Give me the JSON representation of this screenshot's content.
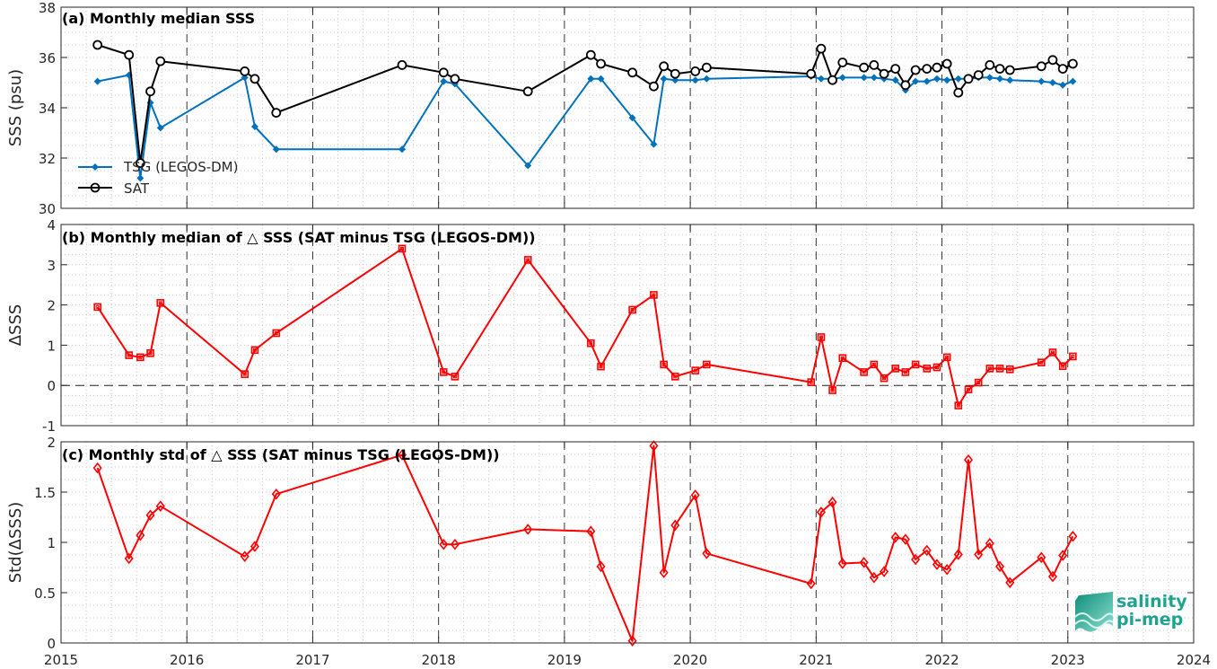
{
  "colors": {
    "tsg": "#0072BD",
    "sat": "#000000",
    "delta": "#FF0000",
    "grid_major": "#000000",
    "grid_minor": "#c8c8c8",
    "logo": "#1fa38f"
  },
  "logo": {
    "line1": "salinity",
    "line2": "pi-mep"
  },
  "chart_data": [
    {
      "type": "line",
      "title": "(a) Monthly median SSS",
      "ylabel": "SSS (psu)",
      "xlim": [
        2015,
        2024
      ],
      "ylim": [
        30,
        38
      ],
      "yticks": [
        30,
        32,
        34,
        36,
        38
      ],
      "xticks": [
        2015,
        2016,
        2017,
        2018,
        2019,
        2020,
        2021,
        2022,
        2023,
        2024
      ],
      "grid": true,
      "legend": "bottom-left",
      "series": [
        {
          "name": "TSG (LEGOS-DM)",
          "marker": "diamond-filled",
          "x": [
            2015.29,
            2015.54,
            2015.63,
            2015.71,
            2015.79,
            2016.46,
            2016.54,
            2016.71,
            2017.71,
            2018.04,
            2018.13,
            2018.71,
            2019.21,
            2019.29,
            2019.54,
            2019.71,
            2019.79,
            2019.88,
            2020.04,
            2020.13,
            2020.96,
            2021.04,
            2021.13,
            2021.21,
            2021.38,
            2021.46,
            2021.54,
            2021.63,
            2021.71,
            2021.79,
            2021.88,
            2021.96,
            2022.04,
            2022.13,
            2022.21,
            2022.29,
            2022.38,
            2022.46,
            2022.54,
            2022.79,
            2022.88,
            2022.96,
            2023.04
          ],
          "y": [
            35.05,
            35.3,
            31.2,
            34.2,
            33.2,
            35.2,
            33.25,
            32.35,
            32.35,
            35.05,
            34.95,
            31.7,
            35.15,
            35.15,
            33.6,
            32.55,
            35.15,
            35.1,
            35.1,
            35.15,
            35.25,
            35.15,
            35.15,
            35.2,
            35.2,
            35.2,
            35.15,
            35.1,
            34.7,
            35.05,
            35.05,
            35.15,
            35.1,
            35.15,
            35.15,
            35.2,
            35.2,
            35.15,
            35.1,
            35.05,
            35.0,
            34.9,
            35.05
          ]
        },
        {
          "name": "SAT",
          "marker": "circle-open",
          "x": [
            2015.29,
            2015.54,
            2015.63,
            2015.71,
            2015.79,
            2016.46,
            2016.54,
            2016.71,
            2017.71,
            2018.04,
            2018.13,
            2018.71,
            2019.21,
            2019.29,
            2019.54,
            2019.71,
            2019.79,
            2019.88,
            2020.04,
            2020.13,
            2020.96,
            2021.04,
            2021.13,
            2021.21,
            2021.38,
            2021.46,
            2021.54,
            2021.63,
            2021.71,
            2021.79,
            2021.88,
            2021.96,
            2022.04,
            2022.13,
            2022.21,
            2022.29,
            2022.38,
            2022.46,
            2022.54,
            2022.79,
            2022.88,
            2022.96,
            2023.04
          ],
          "y": [
            36.5,
            36.1,
            31.8,
            34.65,
            35.85,
            35.45,
            35.15,
            33.8,
            35.7,
            35.4,
            35.15,
            34.65,
            36.1,
            35.75,
            35.4,
            34.85,
            35.65,
            35.35,
            35.45,
            35.6,
            35.35,
            36.35,
            35.1,
            35.8,
            35.6,
            35.7,
            35.35,
            35.55,
            34.9,
            35.5,
            35.55,
            35.6,
            35.75,
            34.6,
            35.15,
            35.3,
            35.7,
            35.55,
            35.5,
            35.65,
            35.9,
            35.55,
            35.75
          ]
        }
      ]
    },
    {
      "type": "line",
      "title": "(b) Monthly median of △ SSS (SAT minus TSG (LEGOS-DM))",
      "ylabel": "ΔSSS",
      "xlim": [
        2015,
        2024
      ],
      "ylim": [
        -1,
        4
      ],
      "yticks": [
        -1,
        0,
        1,
        2,
        3,
        4
      ],
      "grid": true,
      "zero_line": true,
      "series": [
        {
          "marker": "square-open",
          "x": [
            2015.29,
            2015.54,
            2015.63,
            2015.71,
            2015.79,
            2016.46,
            2016.54,
            2016.71,
            2017.71,
            2018.04,
            2018.13,
            2018.71,
            2019.21,
            2019.29,
            2019.54,
            2019.71,
            2019.79,
            2019.88,
            2020.04,
            2020.13,
            2020.96,
            2021.04,
            2021.13,
            2021.21,
            2021.38,
            2021.46,
            2021.54,
            2021.63,
            2021.71,
            2021.79,
            2021.88,
            2021.96,
            2022.04,
            2022.13,
            2022.21,
            2022.29,
            2022.38,
            2022.46,
            2022.54,
            2022.79,
            2022.88,
            2022.96,
            2023.04
          ],
          "y": [
            1.95,
            0.75,
            0.7,
            0.8,
            2.05,
            0.28,
            0.88,
            1.3,
            3.4,
            0.33,
            0.22,
            3.12,
            1.05,
            0.47,
            1.88,
            2.25,
            0.52,
            0.22,
            0.37,
            0.52,
            0.08,
            1.2,
            -0.12,
            0.68,
            0.33,
            0.52,
            0.18,
            0.42,
            0.33,
            0.52,
            0.42,
            0.45,
            0.7,
            -0.5,
            -0.1,
            0.07,
            0.42,
            0.42,
            0.4,
            0.57,
            0.82,
            0.48,
            0.72
          ]
        }
      ]
    },
    {
      "type": "line",
      "title": "(c) Monthly std of △ SSS (SAT minus TSG (LEGOS-DM))",
      "ylabel": "Std(ΔSSS)",
      "xlim": [
        2015,
        2024
      ],
      "ylim": [
        0,
        2
      ],
      "yticks": [
        0,
        0.5,
        1,
        1.5,
        2
      ],
      "grid": true,
      "series": [
        {
          "marker": "diamond-open",
          "x": [
            2015.29,
            2015.54,
            2015.63,
            2015.71,
            2015.79,
            2016.46,
            2016.54,
            2016.71,
            2017.71,
            2018.04,
            2018.13,
            2018.71,
            2019.21,
            2019.29,
            2019.54,
            2019.71,
            2019.79,
            2019.88,
            2020.04,
            2020.13,
            2020.96,
            2021.04,
            2021.13,
            2021.21,
            2021.38,
            2021.46,
            2021.54,
            2021.63,
            2021.71,
            2021.79,
            2021.88,
            2021.96,
            2022.04,
            2022.13,
            2022.21,
            2022.29,
            2022.38,
            2022.46,
            2022.54,
            2022.79,
            2022.88,
            2022.96,
            2023.04
          ],
          "y": [
            1.74,
            0.84,
            1.07,
            1.27,
            1.36,
            0.86,
            0.96,
            1.48,
            1.87,
            0.98,
            0.98,
            1.13,
            1.11,
            0.76,
            0.02,
            1.96,
            0.7,
            1.17,
            1.47,
            0.89,
            0.59,
            1.3,
            1.4,
            0.79,
            0.8,
            0.65,
            0.71,
            1.05,
            1.03,
            0.83,
            0.92,
            0.78,
            0.73,
            0.88,
            1.82,
            0.88,
            0.99,
            0.76,
            0.6,
            0.85,
            0.66,
            0.87,
            1.06
          ]
        }
      ]
    }
  ]
}
